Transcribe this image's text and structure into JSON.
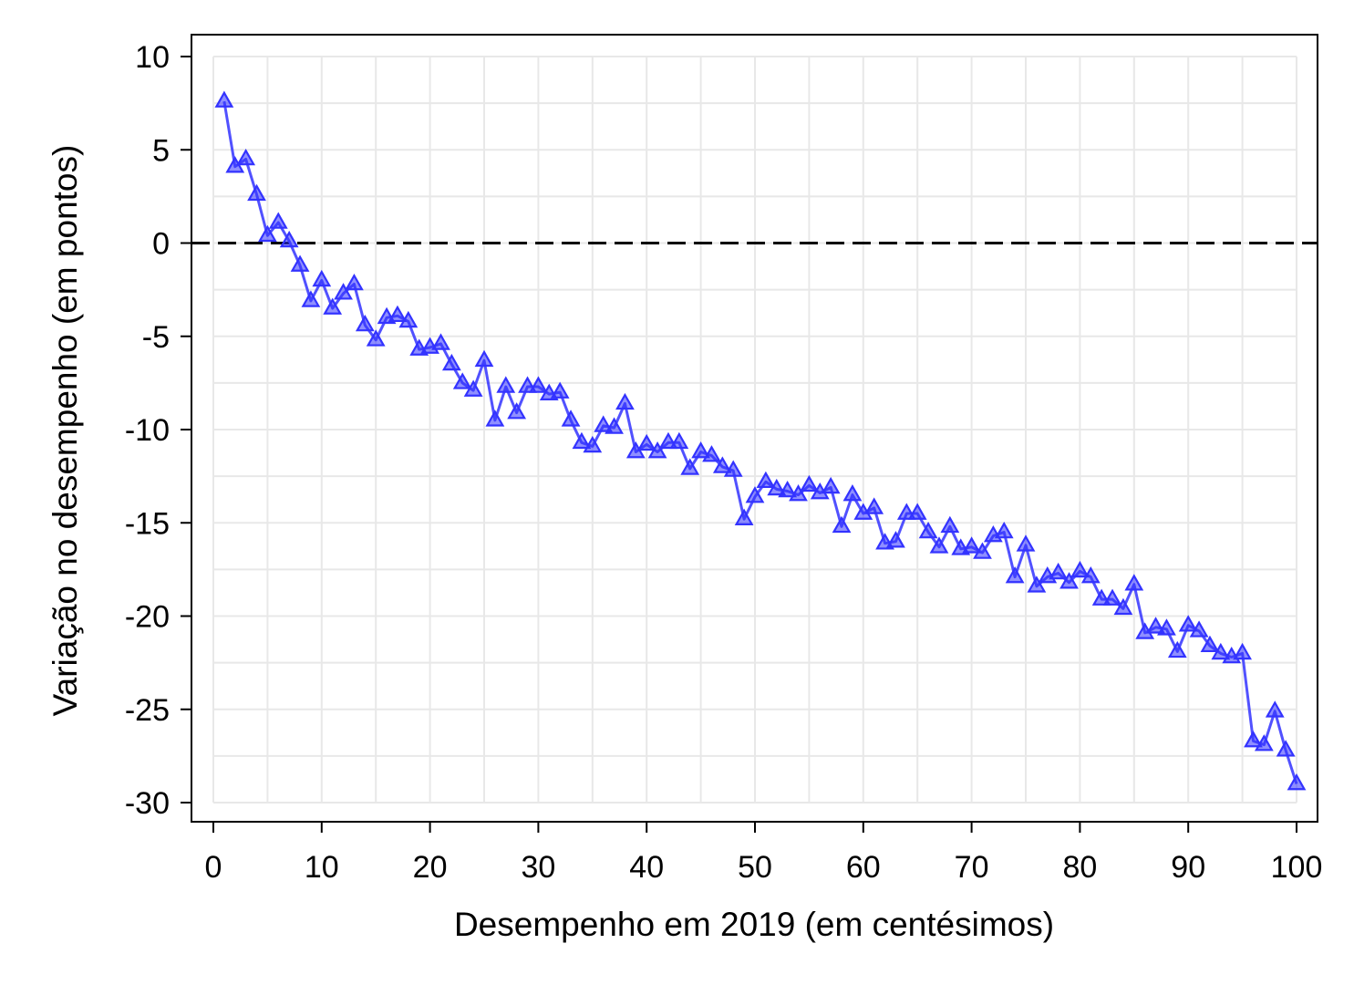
{
  "chart_data": {
    "type": "line",
    "title": "",
    "xlabel": "Desempenho em 2019 (em centésimos)",
    "ylabel": "Variação no desempenho (em pontos)",
    "xlim": [
      0,
      100
    ],
    "ylim": [
      -30,
      10
    ],
    "x_ticks": [
      0,
      10,
      20,
      30,
      40,
      50,
      60,
      70,
      80,
      90,
      100
    ],
    "y_ticks": [
      10,
      5,
      0,
      -5,
      -10,
      -15,
      -20,
      -25,
      -30
    ],
    "x_tick_labels": [
      "0",
      "10",
      "20",
      "30",
      "40",
      "50",
      "60",
      "70",
      "80",
      "90",
      "100"
    ],
    "y_tick_labels": [
      "10",
      "5",
      "0",
      "-5",
      "-10",
      "-15",
      "-20",
      "-25",
      "-30"
    ],
    "grid": true,
    "reference_line": {
      "y": 0,
      "style": "dashed",
      "color": "#000000"
    },
    "series": [
      {
        "color": "#3333ff",
        "marker": "triangle",
        "x": [
          1,
          2,
          3,
          4,
          5,
          6,
          7,
          8,
          9,
          10,
          11,
          12,
          13,
          14,
          15,
          16,
          17,
          18,
          19,
          20,
          21,
          22,
          23,
          24,
          25,
          26,
          27,
          28,
          29,
          30,
          31,
          32,
          33,
          34,
          35,
          36,
          37,
          38,
          39,
          40,
          41,
          42,
          43,
          44,
          45,
          46,
          47,
          48,
          49,
          50,
          51,
          52,
          53,
          54,
          55,
          56,
          57,
          58,
          59,
          60,
          61,
          62,
          63,
          64,
          65,
          66,
          67,
          68,
          69,
          70,
          71,
          72,
          73,
          74,
          75,
          76,
          77,
          78,
          79,
          80,
          81,
          82,
          83,
          84,
          85,
          86,
          87,
          88,
          89,
          90,
          91,
          92,
          93,
          94,
          95,
          96,
          97,
          98,
          99,
          100
        ],
        "values": [
          7.6,
          4.1,
          4.5,
          2.6,
          0.4,
          1.1,
          0.1,
          -1.2,
          -3.1,
          -2.0,
          -3.5,
          -2.7,
          -2.2,
          -4.4,
          -5.2,
          -4.0,
          -3.9,
          -4.2,
          -5.7,
          -5.6,
          -5.4,
          -6.5,
          -7.5,
          -7.9,
          -6.3,
          -9.5,
          -7.7,
          -9.1,
          -7.7,
          -7.7,
          -8.1,
          -8.0,
          -9.5,
          -10.7,
          -10.9,
          -9.8,
          -9.9,
          -8.6,
          -11.2,
          -10.8,
          -11.2,
          -10.7,
          -10.7,
          -12.1,
          -11.2,
          -11.4,
          -12.0,
          -12.2,
          -14.8,
          -13.6,
          -12.8,
          -13.2,
          -13.3,
          -13.5,
          -13.0,
          -13.4,
          -13.1,
          -15.2,
          -13.5,
          -14.5,
          -14.2,
          -16.1,
          -16.0,
          -14.5,
          -14.5,
          -15.5,
          -16.3,
          -15.2,
          -16.4,
          -16.3,
          -16.6,
          -15.7,
          -15.5,
          -17.9,
          -16.2,
          -18.4,
          -17.9,
          -17.7,
          -18.2,
          -17.6,
          -17.9,
          -19.1,
          -19.1,
          -19.6,
          -18.3,
          -20.9,
          -20.6,
          -20.7,
          -21.9,
          -20.5,
          -20.8,
          -21.6,
          -22.0,
          -22.2,
          -22.0,
          -26.7,
          -26.9,
          -25.1,
          -27.2,
          -29.0
        ]
      }
    ]
  }
}
